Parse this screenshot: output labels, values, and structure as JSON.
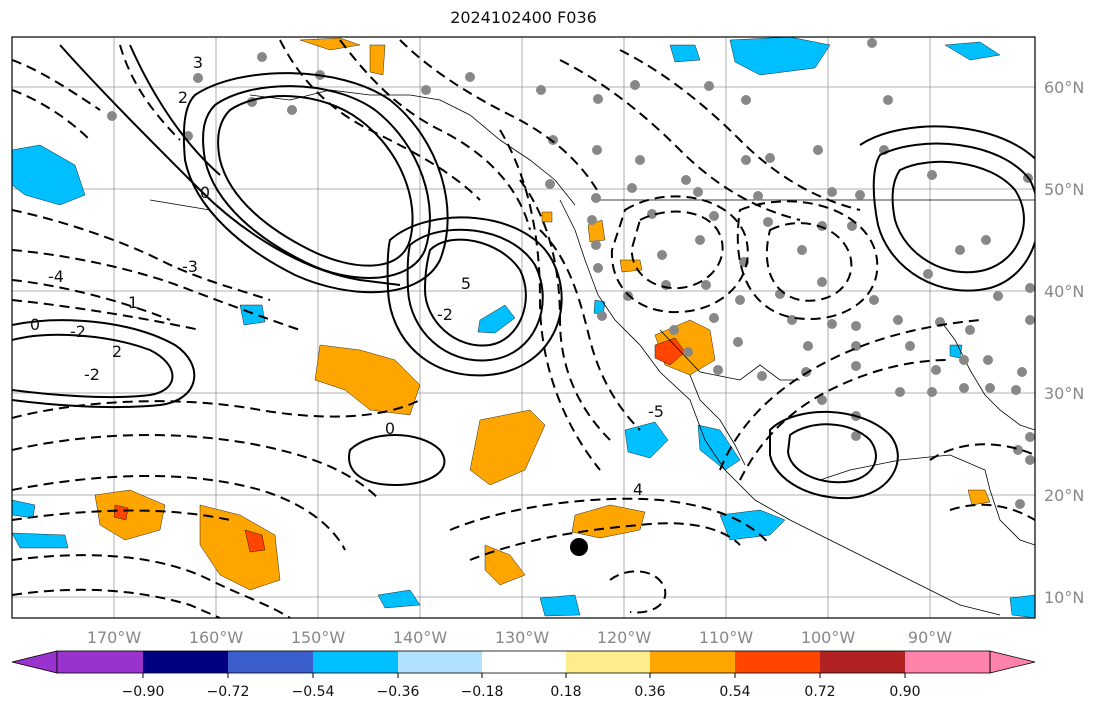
{
  "title": "2024102400 F036",
  "map": {
    "lat_labels": [
      "60°N",
      "50°N",
      "40°N",
      "30°N",
      "20°N",
      "10°N"
    ],
    "lon_labels": [
      "170°W",
      "160°W",
      "150°W",
      "140°W",
      "130°W",
      "120°W",
      "110°W",
      "100°W",
      "90°W"
    ],
    "colorbar": {
      "tick_labels": [
        "−0.90",
        "−0.72",
        "−0.54",
        "−0.36",
        "−0.18",
        "0.18",
        "0.36",
        "0.54",
        "0.72",
        "0.90"
      ],
      "colors": [
        "#9a32cd",
        "#000080",
        "#3a5fcd",
        "#00bfff",
        "#b0e2ff",
        "#ffffff",
        "#ffec8b",
        "#ffa500",
        "#ff4500",
        "#b22222",
        "#ff82ab"
      ]
    },
    "contour_labels": [
      "3",
      "2",
      "0",
      "-3",
      "5",
      "-4",
      "-2",
      "1",
      "0",
      "-2",
      "2",
      "-2",
      "0",
      "-5",
      "4"
    ]
  }
}
